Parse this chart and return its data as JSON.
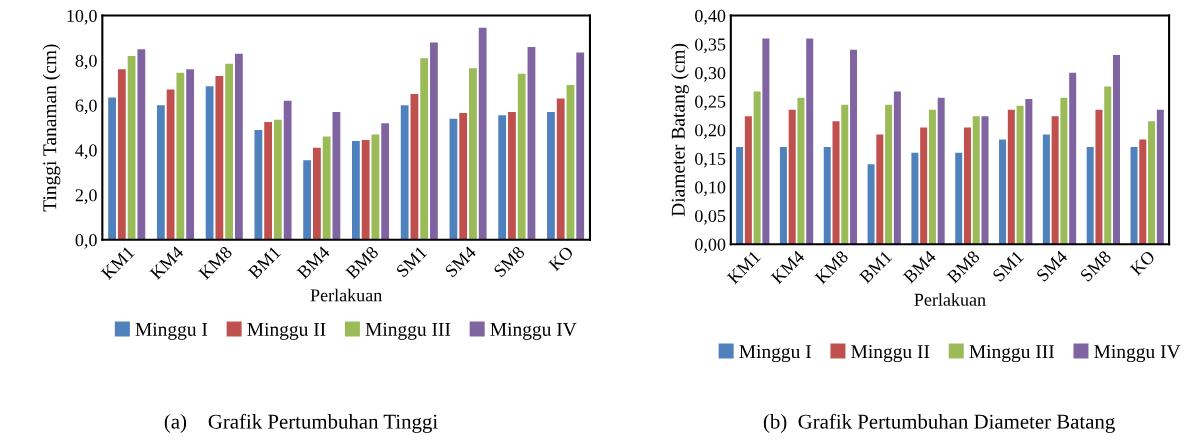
{
  "chart_data": [
    {
      "type": "bar",
      "xlabel": "Perlakuan",
      "ylabel": "Tinggi Tanaman (cm)",
      "categories": [
        "KM1",
        "KM4",
        "KM8",
        "BM1",
        "BM4",
        "BM8",
        "SM1",
        "SM4",
        "SM8",
        "KO"
      ],
      "series": [
        {
          "name": "Minggu I",
          "color": "#4f81bd",
          "values": [
            6.35,
            6.0,
            6.85,
            4.9,
            3.55,
            4.4,
            6.0,
            5.4,
            5.55,
            5.7
          ]
        },
        {
          "name": "Minggu II",
          "color": "#c0504d",
          "values": [
            7.6,
            6.7,
            7.3,
            5.25,
            4.1,
            4.45,
            6.5,
            5.65,
            5.7,
            6.3
          ]
        },
        {
          "name": "Minggu III",
          "color": "#9bbb59",
          "values": [
            8.2,
            7.45,
            7.85,
            5.35,
            4.6,
            4.7,
            8.1,
            7.65,
            7.4,
            6.9
          ]
        },
        {
          "name": "Minggu IV",
          "color": "#8064a2",
          "values": [
            8.5,
            7.6,
            8.3,
            6.2,
            5.7,
            5.2,
            8.8,
            9.45,
            8.6,
            8.35
          ]
        }
      ],
      "ylim": [
        0,
        10
      ],
      "yticks": [
        {
          "value": 0,
          "label": "0,0"
        },
        {
          "value": 2,
          "label": "2,0"
        },
        {
          "value": 4,
          "label": "4,0"
        },
        {
          "value": 6,
          "label": "6,0"
        },
        {
          "value": 8,
          "label": "8,0"
        },
        {
          "value": 10,
          "label": "10,0"
        }
      ],
      "grid": false,
      "legend": "bottom",
      "annotations": [
        "(a)    Grafik Pertumbuhan Tinggi"
      ]
    },
    {
      "type": "bar",
      "xlabel": "Perlakuan",
      "ylabel": "Diameter Batang (cm)",
      "categories": [
        "KM1",
        "KM4",
        "KM8",
        "BM1",
        "BM4",
        "BM8",
        "SM1",
        "SM4",
        "SM8",
        "KO"
      ],
      "series": [
        {
          "name": "Minggu I",
          "color": "#4f81bd",
          "values": [
            0.17,
            0.17,
            0.17,
            0.14,
            0.16,
            0.16,
            0.183,
            0.192,
            0.17,
            0.17
          ]
        },
        {
          "name": "Minggu II",
          "color": "#c0504d",
          "values": [
            0.224,
            0.235,
            0.215,
            0.192,
            0.204,
            0.204,
            0.235,
            0.224,
            0.235,
            0.183
          ]
        },
        {
          "name": "Minggu III",
          "color": "#9bbb59",
          "values": [
            0.267,
            0.256,
            0.244,
            0.244,
            0.235,
            0.224,
            0.242,
            0.256,
            0.276,
            0.215
          ]
        },
        {
          "name": "Minggu IV",
          "color": "#8064a2",
          "values": [
            0.36,
            0.36,
            0.34,
            0.267,
            0.256,
            0.224,
            0.254,
            0.3,
            0.331,
            0.235
          ]
        }
      ],
      "ylim": [
        0,
        0.4
      ],
      "yticks": [
        {
          "value": 0,
          "label": "0,00"
        },
        {
          "value": 0.05,
          "label": "0,05"
        },
        {
          "value": 0.1,
          "label": "0,10"
        },
        {
          "value": 0.15,
          "label": "0,15"
        },
        {
          "value": 0.2,
          "label": "0,20"
        },
        {
          "value": 0.25,
          "label": "0,25"
        },
        {
          "value": 0.3,
          "label": "0,30"
        },
        {
          "value": 0.35,
          "label": "0,35"
        },
        {
          "value": 0.4,
          "label": "0,40"
        }
      ],
      "grid": false,
      "legend": "bottom",
      "annotations": [
        "(b)  Grafik Pertumbuhan Diameter Batang"
      ]
    }
  ]
}
